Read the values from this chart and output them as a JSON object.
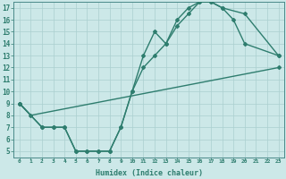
{
  "line1_x": [
    0,
    1,
    23
  ],
  "line1_y": [
    9,
    8,
    12
  ],
  "line2_x": [
    0,
    2,
    3,
    4,
    5,
    6,
    7,
    8,
    9,
    10,
    11,
    12,
    13,
    14,
    15,
    16,
    17,
    18,
    19,
    20,
    23
  ],
  "line2_y": [
    9,
    7,
    7,
    7,
    5,
    5,
    5,
    5,
    7,
    10,
    13,
    15,
    14,
    16,
    17,
    17.5,
    17.5,
    17,
    16,
    14,
    13
  ],
  "line3_x": [
    0,
    2,
    3,
    4,
    5,
    6,
    7,
    8,
    9,
    10,
    11,
    12,
    13,
    14,
    15,
    16,
    17,
    18,
    20,
    23
  ],
  "line3_y": [
    9,
    7,
    7,
    7,
    5,
    5,
    5,
    5,
    7,
    10,
    12,
    13,
    14,
    15.5,
    16.5,
    17.5,
    17.5,
    17,
    16.5,
    13
  ],
  "xlabel": "Humidex (Indice chaleur)",
  "xlim": [
    -0.5,
    23.5
  ],
  "ylim": [
    4.5,
    17.5
  ],
  "yticks": [
    5,
    6,
    7,
    8,
    9,
    10,
    11,
    12,
    13,
    14,
    15,
    16,
    17
  ],
  "xticks": [
    0,
    1,
    2,
    3,
    4,
    5,
    6,
    7,
    8,
    9,
    10,
    11,
    12,
    13,
    14,
    15,
    16,
    17,
    18,
    19,
    20,
    21,
    22,
    23
  ],
  "line_color": "#2e7d6e",
  "bg_color": "#cce8e8",
  "grid_color": "#aacfcf",
  "markersize": 2.0,
  "linewidth": 1.0
}
